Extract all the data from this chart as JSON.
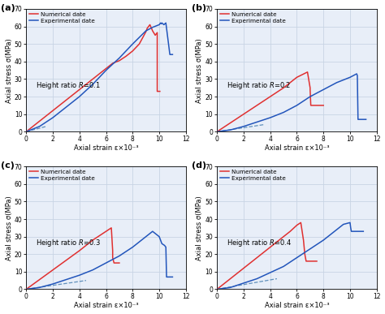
{
  "panels": [
    {
      "label": "(a)",
      "height_ratio_text": "Height ratio R=0.1",
      "numerical": {
        "x": [
          0,
          1,
          2,
          3,
          4,
          5,
          5.5,
          6,
          6.5,
          7,
          7.5,
          8,
          8.5,
          9,
          9.1,
          9.2,
          9.3,
          9.5,
          9.7,
          9.85,
          9.85,
          10.05
        ],
        "y": [
          0,
          6,
          12,
          18,
          24,
          30,
          33,
          36,
          39,
          40.5,
          43,
          46,
          50,
          57,
          59,
          60,
          61,
          57.5,
          55,
          56.5,
          23,
          23
        ]
      },
      "experimental": {
        "x": [
          0,
          1,
          2,
          3,
          4,
          5,
          6,
          7,
          8,
          9,
          9.5,
          10,
          10.1,
          10.15,
          10.2,
          10.35,
          10.5,
          10.8,
          11
        ],
        "y": [
          0,
          3,
          8,
          14,
          20,
          27,
          35,
          42,
          50,
          57.5,
          59.5,
          61,
          62,
          61.5,
          62,
          61,
          62,
          44,
          44
        ]
      },
      "dashed": {
        "x": [
          0,
          1.5
        ],
        "y": [
          0,
          3
        ]
      }
    },
    {
      "label": "(b)",
      "height_ratio_text": "Height ratio R=0.2",
      "numerical": {
        "x": [
          0,
          1,
          2,
          3,
          4,
          5,
          6,
          6.8,
          7.0,
          7.0,
          7.05,
          7.3,
          8.0
        ],
        "y": [
          0,
          5,
          10,
          15,
          20,
          25,
          31,
          34,
          25,
          24,
          15,
          15,
          15
        ]
      },
      "experimental": {
        "x": [
          0,
          1,
          2,
          3,
          4,
          5,
          6,
          7,
          8,
          9,
          10,
          10.5,
          10.55,
          10.6,
          10.9,
          11.2
        ],
        "y": [
          0,
          1,
          3,
          5.5,
          8,
          11,
          15,
          20,
          24,
          28,
          31,
          33,
          32,
          7,
          7,
          7
        ]
      },
      "dashed": {
        "x": [
          0,
          3.5
        ],
        "y": [
          0,
          4
        ]
      }
    },
    {
      "label": "(c)",
      "height_ratio_text": "Height ratio R=0.3",
      "numerical": {
        "x": [
          0,
          1,
          2,
          3,
          4,
          5,
          6,
          6.4,
          6.5,
          6.5,
          6.6,
          7.0
        ],
        "y": [
          0,
          5.5,
          11,
          16.5,
          22,
          28,
          33,
          35,
          22,
          18,
          15,
          15
        ]
      },
      "experimental": {
        "x": [
          0,
          1,
          2,
          3,
          4,
          5,
          6,
          7,
          8,
          9,
          9.5,
          10,
          10.2,
          10.4,
          10.5,
          10.55,
          10.7,
          11.0
        ],
        "y": [
          0,
          1,
          3,
          5.5,
          8,
          11,
          15,
          19,
          24,
          30,
          33,
          30,
          26,
          25,
          24,
          7,
          7,
          7
        ]
      },
      "dashed": {
        "x": [
          0,
          4.5
        ],
        "y": [
          0,
          5
        ]
      }
    },
    {
      "label": "(d)",
      "height_ratio_text": "Height ratio R=0.4",
      "numerical": {
        "x": [
          0,
          1,
          2,
          3,
          4,
          5,
          5.5,
          6,
          6.3,
          6.5,
          6.55,
          6.6,
          6.7,
          7.5
        ],
        "y": [
          0,
          6,
          12,
          18,
          24,
          30,
          33,
          36.5,
          38,
          28,
          24,
          20,
          16,
          16
        ]
      },
      "experimental": {
        "x": [
          0,
          1,
          2,
          3,
          4,
          5,
          6,
          7,
          8,
          9,
          9.5,
          10,
          10.05,
          10.1,
          10.3,
          11.0
        ],
        "y": [
          0,
          1,
          3.5,
          6,
          9.5,
          13,
          18,
          23,
          28,
          34,
          37,
          38,
          35,
          33,
          33,
          33
        ]
      },
      "dashed": {
        "x": [
          0,
          4.5
        ],
        "y": [
          0,
          6
        ]
      }
    }
  ],
  "num_color": "#e03030",
  "exp_color": "#2255bb",
  "dash_color": "#6090bb",
  "ylim": [
    0,
    70
  ],
  "xlim": [
    0,
    12
  ],
  "yticks": [
    0,
    10,
    20,
    30,
    40,
    50,
    60,
    70
  ],
  "xticks": [
    0,
    2,
    4,
    6,
    8,
    10,
    12
  ],
  "xlabel": "Axial strain ε×10⁻³",
  "ylabel": "Axial stress σ(MPa)",
  "legend_numerical": "Numerical date",
  "legend_experimental": "Experimental date",
  "grid_color": "#c8d4e4",
  "bg_color": "#e8eef8"
}
